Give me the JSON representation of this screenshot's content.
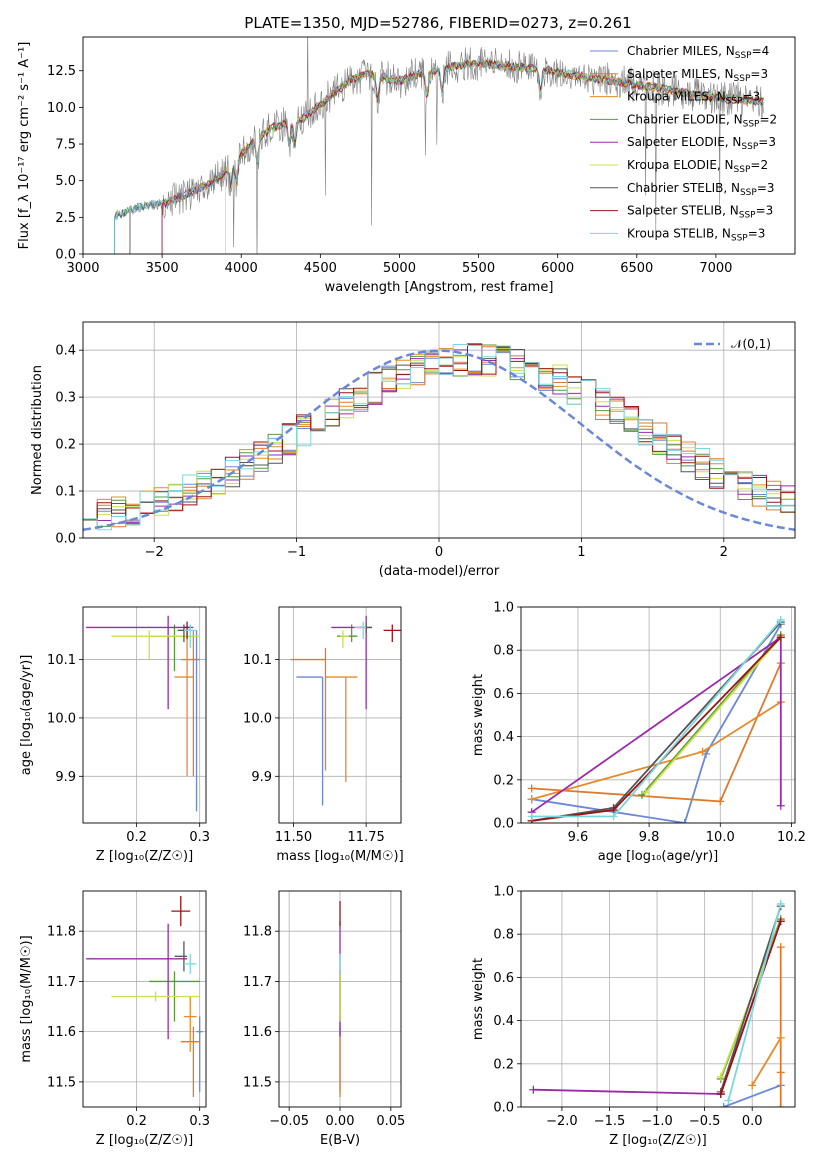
{
  "figure_title": "PLATE=1350, MJD=52786, FIBERID=0273, z=0.261",
  "colors": {
    "Chabrier MILES": "#6b88d8",
    "Salpeter MILES": "#e07a2a",
    "Kroupa MILES": "#e88a2a",
    "Chabrier ELODIE": "#5a9a3a",
    "Salpeter ELODIE": "#9a2aaa",
    "Kroupa ELODIE": "#c8e04a",
    "Chabrier STELIB": "#555555",
    "Salpeter STELIB": "#9a1414",
    "Kroupa STELIB": "#7ad8e0",
    "observed": "#808080",
    "gaussian": "#6b88d8"
  },
  "chart_data": [
    {
      "id": "spectrum",
      "type": "line",
      "title": "PLATE=1350, MJD=52786, FIBERID=0273, z=0.261",
      "xlabel": "wavelength [Angstrom, rest frame]",
      "ylabel": "Flux [f_λ 10⁻¹⁷ erg cm⁻² s⁻¹ A⁻¹]",
      "xlim": [
        3000,
        7500
      ],
      "ylim": [
        0,
        14.8
      ],
      "xticks": [
        "3000",
        "3500",
        "4000",
        "4500",
        "5000",
        "5500",
        "6000",
        "6500",
        "7000"
      ],
      "yticks": [
        "0.0",
        "2.5",
        "5.0",
        "7.5",
        "10.0",
        "12.5"
      ],
      "legend_loc": "upper right",
      "legend": [
        {
          "name": "Chabrier MILES",
          "nssp": "4"
        },
        {
          "name": "Salpeter MILES",
          "nssp": "3"
        },
        {
          "name": "Kroupa MILES",
          "nssp": "3"
        },
        {
          "name": "Chabrier ELODIE",
          "nssp": "2"
        },
        {
          "name": "Salpeter ELODIE",
          "nssp": "3"
        },
        {
          "name": "Kroupa ELODIE",
          "nssp": "2"
        },
        {
          "name": "Chabrier STELIB",
          "nssp": "3"
        },
        {
          "name": "Salpeter STELIB",
          "nssp": "3"
        },
        {
          "name": "Kroupa STELIB",
          "nssp": "3"
        }
      ],
      "continuum": {
        "x": [
          3200,
          3300,
          3400,
          3500,
          3600,
          3700,
          3800,
          3900,
          4000,
          4100,
          4200,
          4300,
          4400,
          4500,
          4600,
          4700,
          4800,
          4900,
          5000,
          5100,
          5200,
          5300,
          5400,
          5500,
          5600,
          5700,
          5800,
          5900,
          6000,
          6100,
          6200,
          6300,
          6400,
          6500,
          6600,
          6700,
          6800,
          6900,
          7000,
          7100,
          7200,
          7300
        ],
        "y": [
          2.6,
          3.0,
          3.3,
          3.4,
          3.8,
          4.3,
          4.8,
          5.6,
          6.8,
          7.9,
          8.6,
          9.0,
          9.3,
          10.2,
          11.1,
          11.9,
          12.3,
          12.0,
          11.8,
          12.2,
          12.4,
          12.7,
          12.9,
          13.0,
          12.9,
          12.8,
          12.7,
          12.6,
          12.4,
          12.2,
          12.0,
          11.9,
          11.7,
          11.5,
          11.4,
          11.2,
          11.0,
          10.8,
          10.7,
          10.6,
          10.5,
          10.4
        ]
      },
      "model_start": [
        3200,
        3500,
        3500,
        3200,
        3500,
        3900,
        3200,
        3500,
        3200
      ]
    },
    {
      "id": "residuals",
      "type": "histogram",
      "xlabel": "(data-model)/error",
      "ylabel": "Normed distribution",
      "xlim": [
        -2.5,
        2.5
      ],
      "ylim": [
        0,
        0.46
      ],
      "xticks": [
        "−2",
        "−1",
        "0",
        "1",
        "2"
      ],
      "yticks": [
        "0.0",
        "0.1",
        "0.2",
        "0.3",
        "0.4"
      ],
      "legend_label": "𝒩(0,1)",
      "bin_width": 0.1
    },
    {
      "id": "z_vs_age",
      "type": "errorbar",
      "xlabel": "Z [log₁₀(Z/Z☉)]",
      "ylabel": "age  [log₁₀(age/yr)]",
      "xlim": [
        0.115,
        0.31
      ],
      "ylim": [
        9.82,
        10.19
      ],
      "xticks": [
        "0.2",
        "0.3"
      ],
      "yticks": [
        "9.9",
        "10.0",
        "10.1"
      ],
      "points": [
        {
          "model": "Chabrier MILES",
          "x": 0.295,
          "y": 10.1,
          "xerr": [
            0.005,
            0.005
          ],
          "yerr": [
            0.26,
            0.05
          ]
        },
        {
          "model": "Salpeter MILES",
          "x": 0.29,
          "y": 10.1,
          "xerr": [
            0.02,
            0.01
          ],
          "yerr": [
            0.2,
            0.05
          ]
        },
        {
          "model": "Kroupa MILES",
          "x": 0.28,
          "y": 10.07,
          "xerr": [
            0.02,
            0.01
          ],
          "yerr": [
            0.17,
            0.08
          ]
        },
        {
          "model": "Chabrier ELODIE",
          "x": 0.26,
          "y": 10.14,
          "xerr": [
            0.04,
            0.03
          ],
          "yerr": [
            0.06,
            0.02
          ]
        },
        {
          "model": "Salpeter ELODIE",
          "x": 0.25,
          "y": 10.155,
          "xerr": [
            0.13,
            0.04
          ],
          "yerr": [
            0.14,
            0.02
          ]
        },
        {
          "model": "Kroupa ELODIE",
          "x": 0.22,
          "y": 10.14,
          "xerr": [
            0.06,
            0.08
          ],
          "yerr": [
            0.04,
            0.01
          ]
        },
        {
          "model": "Chabrier STELIB",
          "x": 0.275,
          "y": 10.15,
          "xerr": [
            0.01,
            0.01
          ],
          "yerr": [
            0.02,
            0.01
          ]
        },
        {
          "model": "Salpeter STELIB",
          "x": 0.28,
          "y": 10.155,
          "xerr": [
            0.005,
            0.005
          ],
          "yerr": [
            0.02,
            0.01
          ]
        },
        {
          "model": "Kroupa STELIB",
          "x": 0.285,
          "y": 10.15,
          "xerr": [
            0.01,
            0.01
          ],
          "yerr": [
            0.03,
            0.01
          ]
        }
      ]
    },
    {
      "id": "mass_vs_age",
      "type": "errorbar",
      "xlabel": "mass [log₁₀(M/M☉)]",
      "xlim": [
        11.45,
        11.87
      ],
      "ylim": [
        9.82,
        10.19
      ],
      "xticks": [
        "11.50",
        "11.75"
      ],
      "yticks": [
        "9.9",
        "10.0",
        "10.1"
      ],
      "points": [
        {
          "model": "Chabrier MILES",
          "x": 11.6,
          "y": 10.07,
          "xerr": [
            0.09,
            0.0
          ],
          "yerr": [
            0.22,
            0.0
          ]
        },
        {
          "model": "Salpeter MILES",
          "x": 11.61,
          "y": 10.1,
          "xerr": [
            0.12,
            0.0
          ],
          "yerr": [
            0.19,
            0.02
          ]
        },
        {
          "model": "Kroupa MILES",
          "x": 11.68,
          "y": 10.07,
          "xerr": [
            0.07,
            0.04
          ],
          "yerr": [
            0.18,
            0.0
          ]
        },
        {
          "model": "Chabrier ELODIE",
          "x": 11.7,
          "y": 10.14,
          "xerr": [
            0.05,
            0.02
          ],
          "yerr": [
            0.01,
            0.02
          ]
        },
        {
          "model": "Salpeter ELODIE",
          "x": 11.75,
          "y": 10.155,
          "xerr": [
            0.12,
            0.02
          ],
          "yerr": [
            0.14,
            0.02
          ]
        },
        {
          "model": "Kroupa ELODIE",
          "x": 11.67,
          "y": 10.14,
          "xerr": [
            0.01,
            0.02
          ],
          "yerr": [
            0.02,
            0.01
          ]
        },
        {
          "model": "Chabrier STELIB",
          "x": 11.75,
          "y": 10.155,
          "xerr": [
            0.02,
            0.02
          ],
          "yerr": [
            0.01,
            0.01
          ]
        },
        {
          "model": "Salpeter STELIB",
          "x": 11.84,
          "y": 10.15,
          "xerr": [
            0.03,
            0.03
          ],
          "yerr": [
            0.02,
            0.01
          ]
        },
        {
          "model": "Kroupa STELIB",
          "x": 11.74,
          "y": 10.155,
          "xerr": [
            0.03,
            0.01
          ],
          "yerr": [
            0.02,
            0.01
          ]
        }
      ]
    },
    {
      "id": "age_weights",
      "type": "line",
      "xlabel": "age  [log₁₀(age/yr)]",
      "ylabel": "mass weight",
      "xlim": [
        9.44,
        10.21
      ],
      "ylim": [
        0,
        1.0
      ],
      "xticks": [
        "9.6",
        "9.8",
        "10.0",
        "10.2"
      ],
      "yticks": [
        "0.0",
        "0.2",
        "0.4",
        "0.6",
        "0.8",
        "1.0"
      ],
      "series": [
        {
          "model": "Chabrier MILES",
          "x": [
            9.47,
            9.9,
            9.96,
            10.17
          ],
          "y": [
            0.11,
            0.0,
            0.32,
            0.92
          ]
        },
        {
          "model": "Salpeter MILES",
          "x": [
            9.47,
            10.0,
            10.17
          ],
          "y": [
            0.16,
            0.1,
            0.74
          ]
        },
        {
          "model": "Kroupa MILES",
          "x": [
            9.47,
            9.95,
            10.17
          ],
          "y": [
            0.11,
            0.33,
            0.56
          ]
        },
        {
          "model": "Chabrier ELODIE",
          "x": [
            9.78,
            10.17
          ],
          "y": [
            0.13,
            0.87
          ]
        },
        {
          "model": "Salpeter ELODIE",
          "x": [
            9.47,
            10.17,
            10.17
          ],
          "y": [
            0.05,
            0.86,
            0.08
          ]
        },
        {
          "model": "Kroupa ELODIE",
          "x": [
            9.79,
            10.17
          ],
          "y": [
            0.14,
            0.86
          ]
        },
        {
          "model": "Chabrier STELIB",
          "x": [
            9.47,
            9.7,
            10.17
          ],
          "y": [
            0.01,
            0.07,
            0.93
          ]
        },
        {
          "model": "Salpeter STELIB",
          "x": [
            9.47,
            9.7,
            10.17
          ],
          "y": [
            0.01,
            0.06,
            0.86
          ]
        },
        {
          "model": "Kroupa STELIB",
          "x": [
            9.47,
            9.7,
            10.17
          ],
          "y": [
            0.03,
            0.03,
            0.94
          ]
        }
      ]
    },
    {
      "id": "z_vs_mass",
      "type": "errorbar",
      "xlabel": "Z [log₁₀(Z/Z☉)]",
      "ylabel": "mass [log₁₀(M/M☉)]",
      "xlim": [
        0.115,
        0.31
      ],
      "ylim": [
        11.45,
        11.88
      ],
      "xticks": [
        "0.2",
        "0.3"
      ],
      "yticks": [
        "11.5",
        "11.6",
        "11.7",
        "11.8"
      ],
      "points": [
        {
          "model": "Chabrier MILES",
          "x": 0.3,
          "y": 11.6,
          "xerr": [
            0.005,
            0.005
          ],
          "yerr": [
            0.12,
            0.03
          ]
        },
        {
          "model": "Salpeter MILES",
          "x": 0.29,
          "y": 11.58,
          "xerr": [
            0.02,
            0.01
          ],
          "yerr": [
            0.11,
            0.03
          ]
        },
        {
          "model": "Kroupa MILES",
          "x": 0.285,
          "y": 11.63,
          "xerr": [
            0.01,
            0.01
          ],
          "yerr": [
            0.07,
            0.04
          ]
        },
        {
          "model": "Chabrier ELODIE",
          "x": 0.26,
          "y": 11.7,
          "xerr": [
            0.04,
            0.04
          ],
          "yerr": [
            0.08,
            0.02
          ]
        },
        {
          "model": "Salpeter ELODIE",
          "x": 0.25,
          "y": 11.745,
          "xerr": [
            0.13,
            0.03
          ],
          "yerr": [
            0.16,
            0.07
          ]
        },
        {
          "model": "Kroupa ELODIE",
          "x": 0.23,
          "y": 11.67,
          "xerr": [
            0.07,
            0.07
          ],
          "yerr": [
            0.01,
            0.01
          ]
        },
        {
          "model": "Chabrier STELIB",
          "x": 0.275,
          "y": 11.75,
          "xerr": [
            0.015,
            0.005
          ],
          "yerr": [
            0.03,
            0.03
          ]
        },
        {
          "model": "Salpeter STELIB",
          "x": 0.27,
          "y": 11.84,
          "xerr": [
            0.015,
            0.015
          ],
          "yerr": [
            0.03,
            0.03
          ]
        },
        {
          "model": "Kroupa STELIB",
          "x": 0.285,
          "y": 11.735,
          "xerr": [
            0.01,
            0.01
          ],
          "yerr": [
            0.02,
            0.02
          ]
        }
      ]
    },
    {
      "id": "ebv_vs_mass",
      "type": "errorbar",
      "xlabel": "E(B-V)",
      "xlim": [
        -0.06,
        0.06
      ],
      "ylim": [
        11.45,
        11.88
      ],
      "xticks": [
        "−0.05",
        "0.00",
        "0.05"
      ],
      "yticks": [
        "11.5",
        "11.6",
        "11.7",
        "11.8"
      ],
      "points": [
        {
          "model": "Chabrier MILES",
          "x": 0.0,
          "y": 11.6,
          "yerr": [
            0.12,
            0.03
          ]
        },
        {
          "model": "Salpeter MILES",
          "x": 0.0,
          "y": 11.58,
          "yerr": [
            0.11,
            0.03
          ]
        },
        {
          "model": "Chabrier ELODIE",
          "x": 0.0,
          "y": 11.7,
          "yerr": [
            0.08,
            0.02
          ]
        },
        {
          "model": "Salpeter ELODIE",
          "x": 0.0,
          "y": 11.75,
          "yerr": [
            0.16,
            0.07
          ]
        },
        {
          "model": "Kroupa ELODIE",
          "x": 0.0,
          "y": 11.67,
          "yerr": [
            0.05,
            0.05
          ]
        },
        {
          "model": "Salpeter STELIB",
          "x": 0.0,
          "y": 11.84,
          "yerr": [
            0.03,
            0.02
          ]
        },
        {
          "model": "Kroupa STELIB",
          "x": 0.0,
          "y": 11.735,
          "yerr": [
            0.02,
            0.02
          ]
        }
      ]
    },
    {
      "id": "z_weights",
      "type": "line",
      "xlabel": "Z [log₁₀(Z/Z☉)]",
      "ylabel": "mass weight",
      "xlim": [
        -2.43,
        0.45
      ],
      "ylim": [
        0,
        1.0
      ],
      "xticks": [
        "−2.0",
        "−1.5",
        "−1.0",
        "−0.5",
        "0.0"
      ],
      "yticks": [
        "0.0",
        "0.2",
        "0.4",
        "0.6",
        "0.8",
        "1.0"
      ],
      "series": [
        {
          "model": "Chabrier MILES",
          "x": [
            -0.3,
            0.3
          ],
          "y": [
            0.0,
            0.1
          ]
        },
        {
          "model": "Salpeter MILES",
          "x": [
            0.3,
            0.3,
            0.3
          ],
          "y": [
            0.0,
            0.16,
            0.74
          ]
        },
        {
          "model": "Kroupa MILES",
          "x": [
            0.0,
            0.3
          ],
          "y": [
            0.1,
            0.32
          ]
        },
        {
          "model": "Chabrier ELODIE",
          "x": [
            -0.33,
            0.3
          ],
          "y": [
            0.13,
            0.87
          ]
        },
        {
          "model": "Salpeter ELODIE",
          "x": [
            -2.3,
            -0.33,
            0.3
          ],
          "y": [
            0.08,
            0.06,
            0.86
          ]
        },
        {
          "model": "Kroupa ELODIE",
          "x": [
            -0.33,
            0.3
          ],
          "y": [
            0.14,
            0.86
          ]
        },
        {
          "model": "Chabrier STELIB",
          "x": [
            -0.33,
            0.3
          ],
          "y": [
            0.07,
            0.93
          ]
        },
        {
          "model": "Salpeter STELIB",
          "x": [
            -0.33,
            0.3
          ],
          "y": [
            0.06,
            0.86
          ]
        },
        {
          "model": "Kroupa STELIB",
          "x": [
            -0.25,
            0.3
          ],
          "y": [
            0.03,
            0.94
          ]
        }
      ]
    }
  ]
}
